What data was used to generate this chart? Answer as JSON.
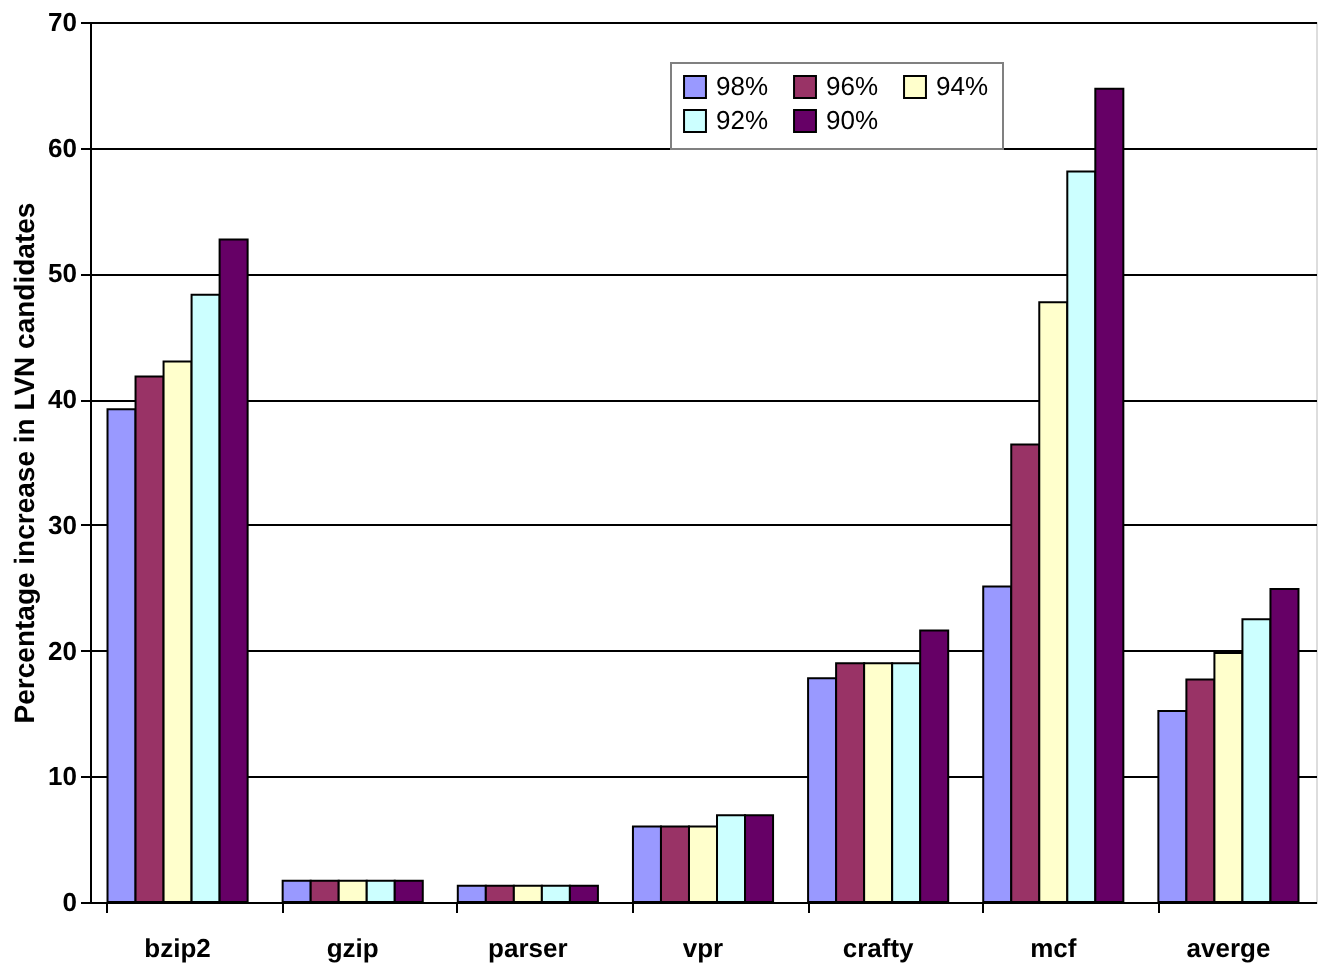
{
  "chart_data": {
    "type": "bar",
    "ylabel": "Percentage increase in LVN candidates",
    "categories": [
      "bzip2",
      "gzip",
      "parser",
      "vpr",
      "crafty",
      "mcf",
      "averge"
    ],
    "series": [
      {
        "name": "98%",
        "color": "#9999ff",
        "values": [
          39.2,
          1.7,
          1.3,
          6.0,
          17.8,
          25.1,
          15.2
        ]
      },
      {
        "name": "96%",
        "color": "#993366",
        "values": [
          41.8,
          1.7,
          1.3,
          6.0,
          19.0,
          36.4,
          17.7
        ]
      },
      {
        "name": "94%",
        "color": "#ffffcc",
        "values": [
          43.0,
          1.7,
          1.3,
          6.0,
          19.0,
          47.7,
          19.8
        ]
      },
      {
        "name": "92%",
        "color": "#ccffff",
        "values": [
          48.3,
          1.7,
          1.3,
          6.9,
          19.0,
          58.1,
          22.5
        ]
      },
      {
        "name": "90%",
        "color": "#660066",
        "values": [
          52.7,
          1.7,
          1.3,
          6.9,
          21.6,
          64.7,
          24.9
        ]
      }
    ],
    "ylim": [
      0,
      70
    ],
    "yticks": [
      0,
      10,
      20,
      30,
      40,
      50,
      60,
      70
    ],
    "grid": "y",
    "legend": "top right"
  }
}
